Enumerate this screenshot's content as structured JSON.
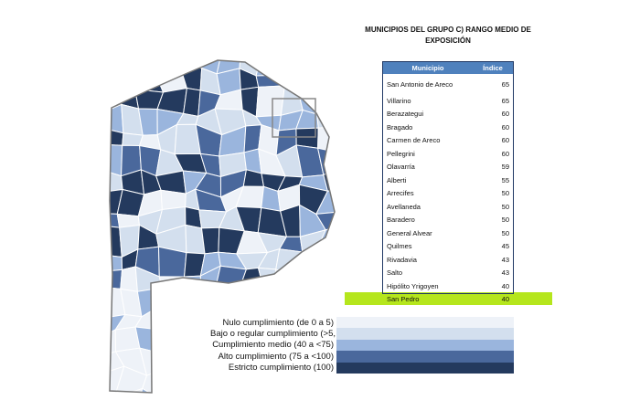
{
  "title": "MUNICIPIOS DEL GRUPO C) RANGO MEDIO DE EXPOSICIÓN",
  "table": {
    "columns": [
      "Municipio",
      "Índice"
    ],
    "rows": [
      [
        "San Antonio de Areco",
        65
      ],
      [
        "Villarino",
        65
      ],
      [
        "Berazategui",
        60
      ],
      [
        "Bragado",
        60
      ],
      [
        "Carmen de Areco",
        60
      ],
      [
        "Pellegrini",
        60
      ],
      [
        "Olavarría",
        59
      ],
      [
        "Alberti",
        55
      ],
      [
        "Arrecifes",
        50
      ],
      [
        "Avellaneda",
        50
      ],
      [
        "Baradero",
        50
      ],
      [
        "General Alvear",
        50
      ],
      [
        "Quilmes",
        45
      ],
      [
        "Rivadavia",
        43
      ],
      [
        "Salto",
        43
      ],
      [
        "Hipólito Yrigoyen",
        40
      ],
      [
        "San Pedro",
        40
      ]
    ],
    "highlighted_row": 16
  },
  "legend": [
    {
      "label": "Nulo cumplimiento (de 0 a 5)",
      "color": "#eef2f8"
    },
    {
      "label": "Bajo o regular cumplimiento (>5, <40)",
      "color": "#d3dfee"
    },
    {
      "label": "Cumplimiento medio (40 a <75)",
      "color": "#9ab5dd"
    },
    {
      "label": "Alto cumplimiento (75 a <100)",
      "color": "#4a689c"
    },
    {
      "label": "Estricto cumplimiento (100)",
      "color": "#243a5e"
    }
  ]
}
